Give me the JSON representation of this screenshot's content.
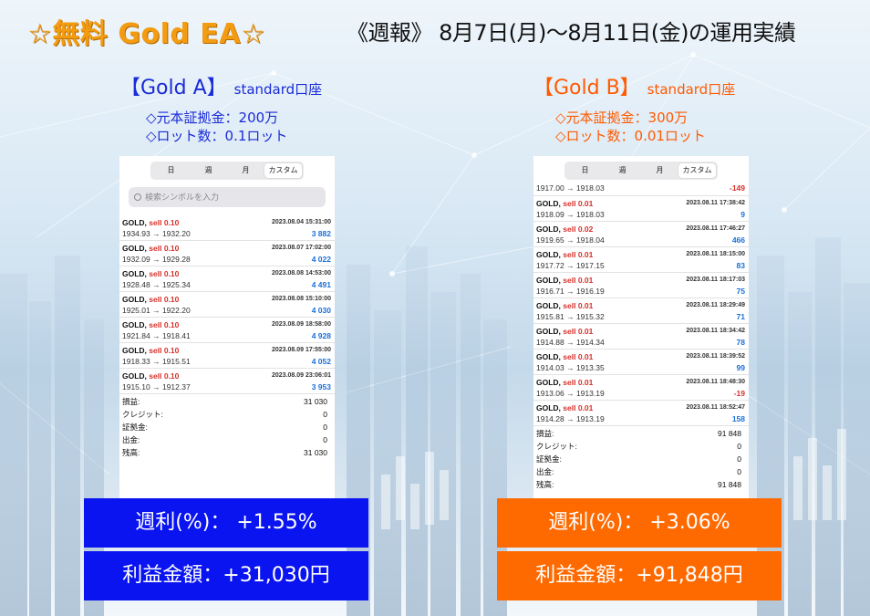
{
  "header": {
    "left_title": "☆無料 Gold EA☆",
    "right_title": "《週報》 8月7日(月)～8月11日(金)の運用実績"
  },
  "accounts": [
    {
      "name": "【Gold A】",
      "type": "standard口座",
      "color": "#1a2bd8",
      "margin_line": "◇元本証拠金：200万",
      "lot_line": "◇ロット数：0.1ロット",
      "tabs": [
        "日",
        "週",
        "月",
        "カスタム"
      ],
      "active_tab": "カスタム",
      "search_placeholder": "検索シンボルを入力",
      "trades": [
        {
          "symbol": "GOLD,",
          "side": "sell 0.10",
          "time": "2023.08.04 15:31:00",
          "prices": "1934.93 → 1932.20",
          "profit": "3 882",
          "sign": "pos"
        },
        {
          "symbol": "GOLD,",
          "side": "sell 0.10",
          "time": "2023.08.07 17:02:00",
          "prices": "1932.09 → 1929.28",
          "profit": "4 022",
          "sign": "pos"
        },
        {
          "symbol": "GOLD,",
          "side": "sell 0.10",
          "time": "2023.08.08 14:53:00",
          "prices": "1928.48 → 1925.34",
          "profit": "4 491",
          "sign": "pos"
        },
        {
          "symbol": "GOLD,",
          "side": "sell 0.10",
          "time": "2023.08.08 15:10:00",
          "prices": "1925.01 → 1922.20",
          "profit": "4 030",
          "sign": "pos"
        },
        {
          "symbol": "GOLD,",
          "side": "sell 0.10",
          "time": "2023.08.09 18:58:00",
          "prices": "1921.84 → 1918.41",
          "profit": "4 928",
          "sign": "pos"
        },
        {
          "symbol": "GOLD,",
          "side": "sell 0.10",
          "time": "2023.08.09 17:55:00",
          "prices": "1918.33 → 1915.51",
          "profit": "4 052",
          "sign": "pos"
        },
        {
          "symbol": "GOLD,",
          "side": "sell 0.10",
          "time": "2023.08.09 23:06:01",
          "prices": "1915.10 → 1912.37",
          "profit": "3 953",
          "sign": "pos"
        }
      ],
      "summary": [
        {
          "label": "損益:",
          "value": "31 030"
        },
        {
          "label": "クレジット:",
          "value": "0"
        },
        {
          "label": "証拠金:",
          "value": "0"
        },
        {
          "label": "出金:",
          "value": "0"
        },
        {
          "label": "残高:",
          "value": "31 030"
        }
      ],
      "weekly_return": "週利(%)： +1.55%",
      "profit_amount": "利益金額：+31,030円"
    },
    {
      "name": "【Gold B】",
      "type": "standard口座",
      "color": "#ff5a00",
      "margin_line": "◇元本証拠金：300万",
      "lot_line": "◇ロット数：0.01ロット",
      "tabs": [
        "日",
        "週",
        "月",
        "カスタム"
      ],
      "active_tab": "カスタム",
      "top_partial": {
        "prices": "1917.00 → 1918.03",
        "profit": "-149",
        "sign": "neg"
      },
      "trades": [
        {
          "symbol": "GOLD,",
          "side": "sell 0.01",
          "time": "2023.08.11 17:38:42",
          "prices": "1918.09 → 1918.03",
          "profit": "9",
          "sign": "pos"
        },
        {
          "symbol": "GOLD,",
          "side": "sell 0.02",
          "time": "2023.08.11 17:46:27",
          "prices": "1919.65 → 1918.04",
          "profit": "466",
          "sign": "pos"
        },
        {
          "symbol": "GOLD,",
          "side": "sell 0.01",
          "time": "2023.08.11 18:15:00",
          "prices": "1917.72 → 1917.15",
          "profit": "83",
          "sign": "pos"
        },
        {
          "symbol": "GOLD,",
          "side": "sell 0.01",
          "time": "2023.08.11 18:17:03",
          "prices": "1916.71 → 1916.19",
          "profit": "75",
          "sign": "pos"
        },
        {
          "symbol": "GOLD,",
          "side": "sell 0.01",
          "time": "2023.08.11 18:29:49",
          "prices": "1915.81 → 1915.32",
          "profit": "71",
          "sign": "pos"
        },
        {
          "symbol": "GOLD,",
          "side": "sell 0.01",
          "time": "2023.08.11 18:34:42",
          "prices": "1914.88 → 1914.34",
          "profit": "78",
          "sign": "pos"
        },
        {
          "symbol": "GOLD,",
          "side": "sell 0.01",
          "time": "2023.08.11 18:39:52",
          "prices": "1914.03 → 1913.35",
          "profit": "99",
          "sign": "pos"
        },
        {
          "symbol": "GOLD,",
          "side": "sell 0.01",
          "time": "2023.08.11 18:48:30",
          "prices": "1913.06 → 1913.19",
          "profit": "-19",
          "sign": "neg"
        },
        {
          "symbol": "GOLD,",
          "side": "sell 0.01",
          "time": "2023.08.11 18:52:47",
          "prices": "1914.28 → 1913.19",
          "profit": "158",
          "sign": "pos"
        }
      ],
      "summary": [
        {
          "label": "損益:",
          "value": "91 848"
        },
        {
          "label": "クレジット:",
          "value": "0"
        },
        {
          "label": "証拠金:",
          "value": "0"
        },
        {
          "label": "出金:",
          "value": "0"
        },
        {
          "label": "残高:",
          "value": "91 848"
        }
      ],
      "weekly_return": "週利(%)： +3.06%",
      "profit_amount": "利益金額：+91,848円"
    }
  ]
}
